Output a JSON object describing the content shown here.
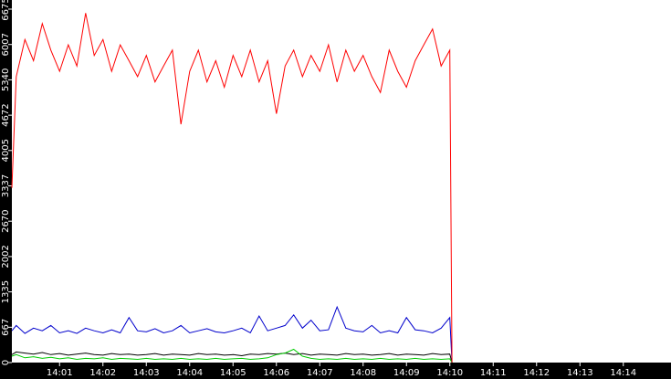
{
  "chart_data": {
    "type": "line",
    "x": [
      839.9,
      840.0,
      840.2,
      840.4,
      840.6,
      840.8,
      841.0,
      841.2,
      841.4,
      841.6,
      841.8,
      842.0,
      842.2,
      842.4,
      842.6,
      842.8,
      843.0,
      843.2,
      843.4,
      843.6,
      843.8,
      844.0,
      844.2,
      844.4,
      844.6,
      844.8,
      845.0,
      845.2,
      845.4,
      845.6,
      845.8,
      846.0,
      846.2,
      846.4,
      846.6,
      846.8,
      847.0,
      847.2,
      847.4,
      847.6,
      847.8,
      848.0,
      848.2,
      848.4,
      848.6,
      848.8,
      849.0,
      849.2,
      849.4,
      849.6,
      849.8,
      850.0,
      850.05
    ],
    "series": [
      {
        "color": "#ff0000",
        "values": [
          3300,
          5400,
          6100,
          5700,
          6400,
          5900,
          5500,
          6000,
          5600,
          6600,
          5800,
          6100,
          5500,
          6000,
          5700,
          5400,
          5800,
          5300,
          5600,
          5900,
          4500,
          5500,
          5900,
          5300,
          5700,
          5200,
          5800,
          5400,
          5900,
          5300,
          5700,
          4700,
          5600,
          5900,
          5400,
          5800,
          5500,
          6000,
          5300,
          5900,
          5500,
          5800,
          5400,
          5100,
          5900,
          5500,
          5200,
          5700,
          6000,
          6300,
          5600,
          5900,
          0
        ]
      },
      {
        "color": "#0000cc",
        "values": [
          600,
          700,
          550,
          650,
          600,
          700,
          560,
          600,
          550,
          650,
          600,
          560,
          620,
          560,
          850,
          600,
          580,
          640,
          560,
          600,
          700,
          560,
          600,
          640,
          580,
          560,
          600,
          650,
          560,
          880,
          600,
          650,
          700,
          900,
          650,
          800,
          600,
          620,
          1050,
          650,
          600,
          580,
          700,
          560,
          600,
          560,
          850,
          620,
          600,
          560,
          650,
          850,
          0
        ]
      },
      {
        "color": "#00cc00",
        "values": [
          120,
          150,
          90,
          110,
          80,
          100,
          70,
          90,
          60,
          80,
          70,
          90,
          60,
          80,
          70,
          60,
          80,
          60,
          70,
          60,
          80,
          60,
          70,
          60,
          80,
          60,
          70,
          80,
          60,
          70,
          90,
          150,
          180,
          250,
          120,
          80,
          60,
          70,
          60,
          80,
          60,
          70,
          60,
          80,
          60,
          70,
          60,
          80,
          60,
          70,
          60,
          70,
          0
        ]
      },
      {
        "color": "#000000",
        "values": [
          150,
          200,
          180,
          160,
          190,
          150,
          170,
          140,
          160,
          180,
          150,
          140,
          170,
          150,
          160,
          140,
          150,
          170,
          140,
          160,
          150,
          140,
          170,
          150,
          160,
          140,
          150,
          130,
          160,
          150,
          170,
          160,
          180,
          150,
          170,
          140,
          160,
          150,
          140,
          170,
          150,
          160,
          140,
          150,
          170,
          140,
          160,
          150,
          140,
          170,
          150,
          160,
          0
        ]
      }
    ],
    "xlim": [
      839.9,
      855.1
    ],
    "xticks": [
      {
        "value": 841,
        "label": "14:01"
      },
      {
        "value": 842,
        "label": "14:02"
      },
      {
        "value": 843,
        "label": "14:03"
      },
      {
        "value": 844,
        "label": "14:04"
      },
      {
        "value": 845,
        "label": "14:05"
      },
      {
        "value": 846,
        "label": "14:06"
      },
      {
        "value": 847,
        "label": "14:07"
      },
      {
        "value": 848,
        "label": "14:08"
      },
      {
        "value": 849,
        "label": "14:09"
      },
      {
        "value": 850,
        "label": "14:10"
      },
      {
        "value": 851,
        "label": "14:11"
      },
      {
        "value": 852,
        "label": "14:12"
      },
      {
        "value": 853,
        "label": "14:13"
      },
      {
        "value": 854,
        "label": "14:14"
      }
    ],
    "ylim": [
      0,
      6675
    ],
    "yticks": [
      0,
      667,
      1335,
      2002,
      2670,
      3337,
      4005,
      4672,
      5340,
      6007,
      6675
    ]
  }
}
